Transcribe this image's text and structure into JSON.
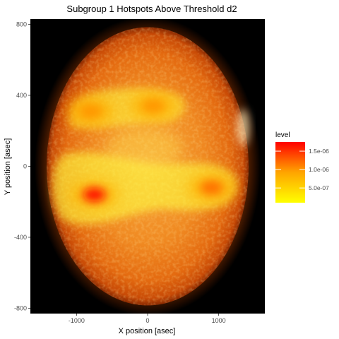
{
  "chart_data": {
    "type": "heatmap",
    "title": "Subgroup 1 Hotspots Above Threshold d2",
    "xlabel": "X position [asec]",
    "ylabel": "Y position [asec]",
    "xlim": [
      -1650,
      1650
    ],
    "ylim": [
      -830,
      830
    ],
    "x_ticks": [
      -1000,
      0,
      1000
    ],
    "y_ticks": [
      -800,
      -400,
      0,
      400,
      800
    ],
    "x_tick_labels": [
      "-1000",
      "0",
      "1000"
    ],
    "y_tick_labels": [
      "-800",
      "-400",
      "0",
      "400",
      "800"
    ],
    "grid": false,
    "background": "solar disk image",
    "legend": {
      "title": "level",
      "position": "right",
      "range": [
        1e-07,
        1.75e-06
      ],
      "breaks": [
        5e-07,
        1e-06,
        1.5e-06
      ],
      "labels": [
        "5.0e-07",
        "1.0e-06",
        "1.5e-06"
      ],
      "color_low": "#ffff00",
      "color_high": "#ff0000"
    },
    "hotspots": [
      {
        "x": -750,
        "y": -160,
        "level": 1.7e-06
      },
      {
        "x": 900,
        "y": -120,
        "level": 1.2e-06
      },
      {
        "x": -800,
        "y": 310,
        "level": 1e-06
      },
      {
        "x": 80,
        "y": 340,
        "level": 1e-06
      }
    ]
  }
}
